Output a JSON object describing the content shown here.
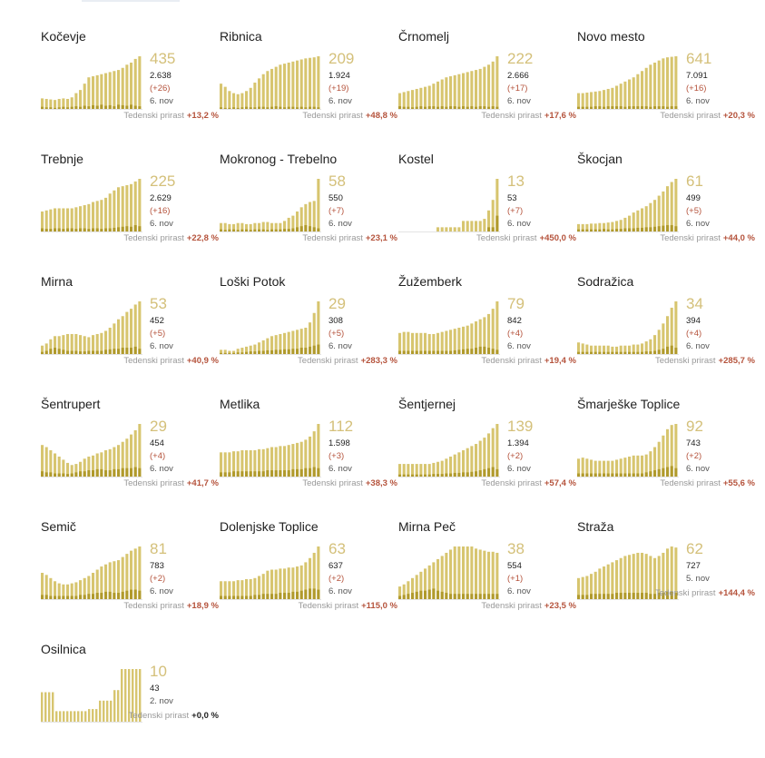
{
  "colors": {
    "bar_light": "#d7c56f",
    "bar_dark": "#b09a2c",
    "big_number": "#d4c07a",
    "positive": "#b5533c",
    "neutral": "#222222",
    "muted": "#999999"
  },
  "growth_label": "Tedenski prirast",
  "chart_data": [
    {
      "type": "bar",
      "name": "Kočevje",
      "active": "435",
      "total": "2.638",
      "delta": "(+26)",
      "date": "6. nov",
      "growth": "+13,2 %",
      "values": [
        20,
        19,
        18,
        17,
        19,
        20,
        19,
        22,
        30,
        36,
        48,
        60,
        62,
        64,
        66,
        68,
        70,
        72,
        74,
        78,
        84,
        88,
        95,
        100
      ],
      "new_cases": [
        4,
        3,
        3,
        2,
        3,
        4,
        3,
        4,
        5,
        4,
        6,
        5,
        7,
        6,
        8,
        6,
        7,
        5,
        8,
        7,
        6,
        8,
        6,
        5
      ]
    },
    {
      "type": "bar",
      "name": "Ribnica",
      "active": "209",
      "total": "1.924",
      "delta": "(+19)",
      "date": "6. nov",
      "growth": "+48,8 %",
      "values": [
        48,
        42,
        34,
        30,
        28,
        30,
        34,
        40,
        50,
        58,
        66,
        72,
        76,
        80,
        84,
        86,
        88,
        90,
        92,
        94,
        96,
        97,
        98,
        100
      ],
      "new_cases": [
        3,
        2,
        2,
        3,
        2,
        3,
        4,
        3,
        3,
        4,
        4,
        3,
        4,
        5,
        4,
        3,
        4,
        4,
        3,
        4,
        3,
        4,
        4,
        3
      ]
    },
    {
      "type": "bar",
      "name": "Črnomelj",
      "active": "222",
      "total": "2.666",
      "delta": "(+17)",
      "date": "6. nov",
      "growth": "+17,6 %",
      "values": [
        30,
        32,
        34,
        36,
        38,
        40,
        42,
        44,
        48,
        52,
        56,
        60,
        62,
        64,
        66,
        68,
        70,
        72,
        74,
        76,
        80,
        84,
        90,
        100
      ],
      "new_cases": [
        5,
        4,
        4,
        3,
        4,
        5,
        4,
        5,
        5,
        4,
        5,
        4,
        5,
        5,
        4,
        5,
        4,
        5,
        4,
        5,
        5,
        4,
        5,
        4
      ]
    },
    {
      "type": "bar",
      "name": "Novo mesto",
      "active": "641",
      "total": "7.091",
      "delta": "(+16)",
      "date": "6. nov",
      "growth": "+20,3 %",
      "values": [
        30,
        30,
        31,
        32,
        33,
        34,
        36,
        38,
        40,
        44,
        48,
        52,
        56,
        60,
        66,
        72,
        78,
        84,
        88,
        92,
        96,
        98,
        99,
        100
      ],
      "new_cases": [
        4,
        4,
        4,
        4,
        5,
        5,
        4,
        5,
        5,
        5,
        5,
        4,
        5,
        5,
        5,
        5,
        5,
        4,
        5,
        5,
        5,
        4,
        5,
        5
      ]
    },
    {
      "type": "bar",
      "name": "Trebnje",
      "active": "225",
      "total": "2.629",
      "delta": "(+16)",
      "date": "6. nov",
      "growth": "+22,8 %",
      "values": [
        38,
        40,
        42,
        44,
        44,
        44,
        44,
        44,
        46,
        48,
        50,
        52,
        56,
        58,
        60,
        64,
        72,
        78,
        84,
        86,
        88,
        90,
        95,
        100
      ],
      "new_cases": [
        6,
        5,
        5,
        6,
        6,
        5,
        6,
        6,
        5,
        6,
        6,
        5,
        6,
        6,
        5,
        6,
        6,
        7,
        8,
        9,
        10,
        9,
        12,
        10
      ]
    },
    {
      "type": "bar",
      "name": "Mokronog - Trebelno",
      "active": "58",
      "total": "550",
      "delta": "(+7)",
      "date": "6. nov",
      "growth": "+23,1 %",
      "values": [
        16,
        16,
        14,
        14,
        16,
        16,
        14,
        14,
        16,
        16,
        18,
        18,
        16,
        16,
        16,
        20,
        26,
        30,
        38,
        46,
        52,
        56,
        58,
        100
      ],
      "new_cases": [
        4,
        3,
        4,
        4,
        3,
        4,
        4,
        3,
        4,
        4,
        4,
        3,
        4,
        4,
        4,
        5,
        5,
        6,
        8,
        10,
        12,
        10,
        8,
        6
      ]
    },
    {
      "type": "bar",
      "name": "Kostel",
      "active": "13",
      "total": "53",
      "delta": "(+7)",
      "date": "6. nov",
      "growth": "+450,0 %",
      "values": [
        0,
        0,
        0,
        0,
        0,
        0,
        0,
        0,
        0,
        8,
        8,
        8,
        8,
        8,
        8,
        20,
        20,
        20,
        20,
        20,
        24,
        40,
        60,
        100
      ],
      "new_cases": [
        0,
        0,
        0,
        0,
        0,
        0,
        0,
        0,
        0,
        0,
        0,
        0,
        0,
        0,
        0,
        0,
        0,
        0,
        0,
        0,
        0,
        8,
        8,
        30
      ]
    },
    {
      "type": "bar",
      "name": "Škocjan",
      "active": "61",
      "total": "499",
      "delta": "(+5)",
      "date": "6. nov",
      "growth": "+44,0 %",
      "values": [
        14,
        14,
        14,
        15,
        15,
        16,
        16,
        17,
        18,
        20,
        22,
        26,
        30,
        36,
        40,
        44,
        48,
        54,
        60,
        68,
        76,
        86,
        94,
        100
      ],
      "new_cases": [
        4,
        4,
        4,
        4,
        4,
        4,
        5,
        4,
        4,
        5,
        5,
        6,
        6,
        6,
        7,
        7,
        8,
        8,
        9,
        10,
        11,
        12,
        12,
        10
      ]
    },
    {
      "type": "bar",
      "name": "Mirna",
      "active": "53",
      "total": "452",
      "delta": "(+5)",
      "date": "6. nov",
      "growth": "+40,9 %",
      "values": [
        16,
        20,
        28,
        34,
        34,
        36,
        38,
        38,
        38,
        36,
        34,
        32,
        36,
        38,
        40,
        44,
        50,
        58,
        66,
        72,
        80,
        86,
        94,
        100
      ],
      "new_cases": [
        4,
        6,
        10,
        12,
        10,
        8,
        6,
        6,
        6,
        5,
        5,
        6,
        6,
        6,
        6,
        8,
        9,
        10,
        10,
        12,
        12,
        12,
        14,
        10
      ]
    },
    {
      "type": "bar",
      "name": "Loški Potok",
      "active": "29",
      "total": "308",
      "delta": "(+5)",
      "date": "6. nov",
      "growth": "+283,3 %",
      "values": [
        8,
        8,
        6,
        6,
        10,
        12,
        14,
        16,
        18,
        22,
        26,
        30,
        34,
        36,
        38,
        40,
        42,
        44,
        46,
        48,
        50,
        60,
        78,
        100
      ],
      "new_cases": [
        2,
        2,
        2,
        2,
        3,
        3,
        4,
        5,
        5,
        6,
        6,
        7,
        7,
        8,
        8,
        9,
        9,
        10,
        10,
        12,
        12,
        14,
        16,
        18
      ]
    },
    {
      "type": "bar",
      "name": "Žužemberk",
      "active": "79",
      "total": "842",
      "delta": "(+4)",
      "date": "6. nov",
      "growth": "+19,4 %",
      "values": [
        40,
        42,
        42,
        40,
        40,
        40,
        40,
        38,
        38,
        40,
        42,
        44,
        46,
        48,
        50,
        52,
        54,
        58,
        62,
        66,
        70,
        76,
        86,
        100
      ],
      "new_cases": [
        6,
        6,
        6,
        6,
        6,
        6,
        6,
        6,
        6,
        6,
        6,
        6,
        6,
        7,
        8,
        9,
        10,
        10,
        12,
        14,
        14,
        12,
        10,
        8
      ]
    },
    {
      "type": "bar",
      "name": "Sodražica",
      "active": "34",
      "total": "394",
      "delta": "(+4)",
      "date": "6. nov",
      "growth": "+285,7 %",
      "values": [
        22,
        20,
        18,
        16,
        16,
        16,
        16,
        16,
        14,
        14,
        16,
        16,
        16,
        18,
        18,
        20,
        24,
        28,
        36,
        46,
        58,
        72,
        88,
        100
      ],
      "new_cases": [
        4,
        4,
        4,
        4,
        4,
        4,
        4,
        4,
        4,
        4,
        4,
        4,
        4,
        4,
        4,
        4,
        5,
        5,
        6,
        8,
        10,
        14,
        16,
        12
      ]
    },
    {
      "type": "bar",
      "name": "Šentrupert",
      "active": "29",
      "total": "454",
      "delta": "(+4)",
      "date": "6. nov",
      "growth": "+41,7 %",
      "values": [
        60,
        56,
        50,
        44,
        38,
        32,
        26,
        22,
        24,
        28,
        34,
        38,
        40,
        44,
        46,
        50,
        52,
        56,
        60,
        66,
        72,
        80,
        88,
        100
      ],
      "new_cases": [
        10,
        8,
        8,
        6,
        6,
        6,
        5,
        6,
        8,
        10,
        10,
        12,
        12,
        14,
        14,
        12,
        12,
        14,
        14,
        16,
        16,
        16,
        18,
        16
      ]
    },
    {
      "type": "bar",
      "name": "Metlika",
      "active": "112",
      "total": "1.598",
      "delta": "(+3)",
      "date": "6. nov",
      "growth": "+38,3 %",
      "values": [
        46,
        46,
        46,
        48,
        48,
        50,
        50,
        50,
        50,
        52,
        52,
        54,
        56,
        56,
        58,
        58,
        60,
        62,
        64,
        66,
        70,
        76,
        86,
        100
      ],
      "new_cases": [
        8,
        8,
        8,
        10,
        10,
        10,
        10,
        10,
        10,
        10,
        10,
        12,
        12,
        12,
        12,
        12,
        12,
        14,
        14,
        14,
        16,
        16,
        18,
        16
      ]
    },
    {
      "type": "bar",
      "name": "Šentjernej",
      "active": "139",
      "total": "1.394",
      "delta": "(+2)",
      "date": "6. nov",
      "growth": "+57,4 %",
      "values": [
        24,
        24,
        24,
        24,
        24,
        24,
        24,
        24,
        26,
        28,
        30,
        34,
        38,
        42,
        46,
        50,
        54,
        58,
        62,
        68,
        74,
        82,
        92,
        100
      ],
      "new_cases": [
        4,
        4,
        4,
        4,
        4,
        4,
        4,
        4,
        5,
        5,
        5,
        6,
        6,
        7,
        7,
        8,
        8,
        9,
        10,
        12,
        14,
        16,
        18,
        14
      ]
    },
    {
      "type": "bar",
      "name": "Šmarješke Toplice",
      "active": "92",
      "total": "743",
      "delta": "(+2)",
      "date": "6. nov",
      "growth": "+55,6 %",
      "values": [
        34,
        36,
        34,
        32,
        30,
        30,
        30,
        30,
        30,
        32,
        34,
        36,
        38,
        40,
        40,
        40,
        42,
        48,
        56,
        66,
        78,
        90,
        98,
        100
      ],
      "new_cases": [
        6,
        6,
        6,
        6,
        6,
        6,
        6,
        6,
        6,
        6,
        6,
        6,
        6,
        6,
        6,
        6,
        8,
        10,
        12,
        14,
        16,
        18,
        20,
        16
      ]
    },
    {
      "type": "bar",
      "name": "Semič",
      "active": "81",
      "total": "783",
      "delta": "(+2)",
      "date": "6. nov",
      "growth": "+18,9 %",
      "values": [
        50,
        46,
        40,
        34,
        30,
        28,
        28,
        30,
        32,
        36,
        40,
        44,
        50,
        56,
        62,
        66,
        70,
        72,
        74,
        80,
        86,
        92,
        96,
        100
      ],
      "new_cases": [
        8,
        8,
        6,
        6,
        6,
        6,
        6,
        6,
        6,
        8,
        8,
        10,
        10,
        12,
        12,
        14,
        14,
        12,
        12,
        14,
        16,
        18,
        18,
        16
      ]
    },
    {
      "type": "bar",
      "name": "Dolenjske Toplice",
      "active": "63",
      "total": "637",
      "delta": "(+2)",
      "date": "6. nov",
      "growth": "+115,0 %",
      "values": [
        34,
        34,
        34,
        34,
        36,
        36,
        38,
        38,
        40,
        44,
        48,
        54,
        56,
        56,
        58,
        58,
        60,
        60,
        62,
        64,
        70,
        78,
        88,
        100
      ],
      "new_cases": [
        6,
        6,
        6,
        6,
        6,
        6,
        6,
        6,
        8,
        8,
        10,
        10,
        10,
        10,
        12,
        12,
        12,
        14,
        14,
        16,
        18,
        20,
        20,
        18
      ]
    },
    {
      "type": "bar",
      "name": "Mirna Peč",
      "active": "38",
      "total": "554",
      "delta": "(+1)",
      "date": "6. nov",
      "growth": "+23,5 %",
      "values": [
        24,
        28,
        34,
        40,
        46,
        52,
        58,
        64,
        70,
        76,
        82,
        88,
        94,
        100,
        100,
        100,
        100,
        100,
        96,
        94,
        92,
        90,
        90,
        88
      ],
      "new_cases": [
        6,
        8,
        10,
        12,
        14,
        16,
        16,
        18,
        20,
        16,
        14,
        12,
        10,
        10,
        10,
        10,
        10,
        10,
        10,
        10,
        10,
        10,
        10,
        10
      ]
    },
    {
      "type": "bar",
      "name": "Straža",
      "active": "62",
      "total": "727",
      "delta": "",
      "date": "5. nov",
      "growth": "+144,4 %",
      "values": [
        40,
        42,
        44,
        48,
        52,
        58,
        62,
        66,
        70,
        74,
        78,
        82,
        84,
        86,
        88,
        88,
        86,
        82,
        78,
        82,
        88,
        96,
        100,
        98
      ],
      "new_cases": [
        8,
        8,
        8,
        10,
        10,
        10,
        10,
        10,
        10,
        12,
        12,
        12,
        12,
        12,
        12,
        12,
        12,
        10,
        10,
        12,
        12,
        14,
        14,
        12
      ]
    },
    {
      "type": "bar",
      "name": "Osilnica",
      "active": "10",
      "total": "43",
      "delta": "",
      "date": "2. nov",
      "growth": "+0,0 %",
      "growth_neutral": true,
      "values": [
        56,
        56,
        56,
        56,
        20,
        20,
        20,
        20,
        20,
        20,
        20,
        20,
        20,
        24,
        24,
        24,
        40,
        40,
        40,
        40,
        60,
        60,
        100,
        100,
        100,
        100,
        100,
        100
      ],
      "new_cases": [
        0,
        0,
        0,
        0,
        0,
        0,
        0,
        0,
        0,
        0,
        0,
        0,
        0,
        0,
        0,
        0,
        0,
        0,
        0,
        0,
        0,
        0,
        0,
        0,
        0,
        0,
        0,
        0
      ]
    }
  ]
}
